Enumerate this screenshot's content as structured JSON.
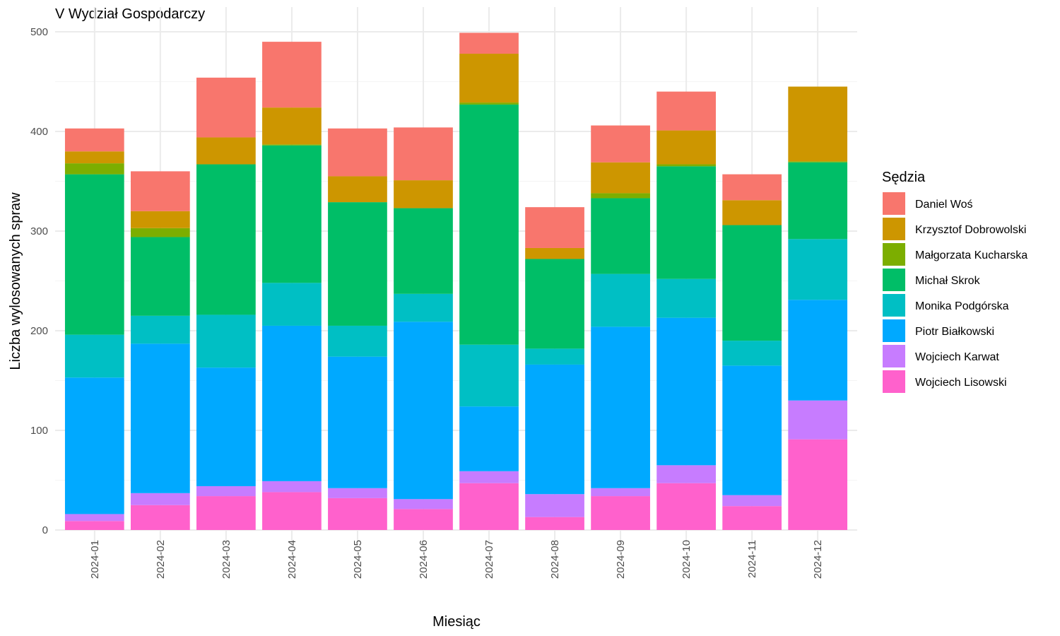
{
  "chart_data": {
    "type": "bar",
    "stacked": true,
    "title": "V Wydział Gospodarczy",
    "xlabel": "Miesiąc",
    "ylabel": "Liczba wylosowanych spraw",
    "ylim": [
      0,
      500
    ],
    "yticks": [
      0,
      100,
      200,
      300,
      400,
      500
    ],
    "grid": true,
    "legend_title": "Sędzia",
    "legend_position": "right",
    "categories": [
      "2024-01",
      "2024-02",
      "2024-03",
      "2024-04",
      "2024-05",
      "2024-06",
      "2024-07",
      "2024-08",
      "2024-09",
      "2024-10",
      "2024-11",
      "2024-12"
    ],
    "series": [
      {
        "name": "Wojciech Lisowski",
        "color": "#FF61CC",
        "values": [
          9,
          25,
          34,
          38,
          32,
          21,
          47,
          13,
          34,
          47,
          24,
          91
        ]
      },
      {
        "name": "Wojciech Karwat",
        "color": "#C77CFF",
        "values": [
          7,
          12,
          10,
          11,
          10,
          10,
          12,
          23,
          8,
          18,
          11,
          39
        ]
      },
      {
        "name": "Piotr Białkowski",
        "color": "#00A9FF",
        "values": [
          137,
          150,
          119,
          156,
          132,
          178,
          65,
          130,
          162,
          148,
          130,
          101
        ]
      },
      {
        "name": "Monika Podgórska",
        "color": "#00BFC4",
        "values": [
          43,
          28,
          53,
          43,
          31,
          28,
          62,
          16,
          53,
          39,
          25,
          61
        ]
      },
      {
        "name": "Michał Skrok",
        "color": "#00BE67",
        "values": [
          161,
          79,
          151,
          138,
          124,
          86,
          241,
          90,
          76,
          113,
          116,
          77
        ]
      },
      {
        "name": "Małgorzata Kucharska",
        "color": "#7CAE00",
        "values": [
          11,
          9,
          0,
          1,
          0,
          0,
          2,
          0,
          5,
          2,
          0,
          1
        ]
      },
      {
        "name": "Krzysztof Dobrowolski",
        "color": "#CD9600",
        "values": [
          12,
          17,
          27,
          37,
          26,
          28,
          49,
          11,
          31,
          34,
          25,
          75
        ]
      },
      {
        "name": "Daniel Woś",
        "color": "#F8766D",
        "values": [
          23,
          40,
          60,
          66,
          48,
          53,
          21,
          41,
          37,
          39,
          26,
          0
        ]
      }
    ],
    "legend_order": [
      "Daniel Woś",
      "Krzysztof Dobrowolski",
      "Małgorzata Kucharska",
      "Michał Skrok",
      "Monika Podgórska",
      "Piotr Białkowski",
      "Wojciech Karwat",
      "Wojciech Lisowski"
    ]
  }
}
